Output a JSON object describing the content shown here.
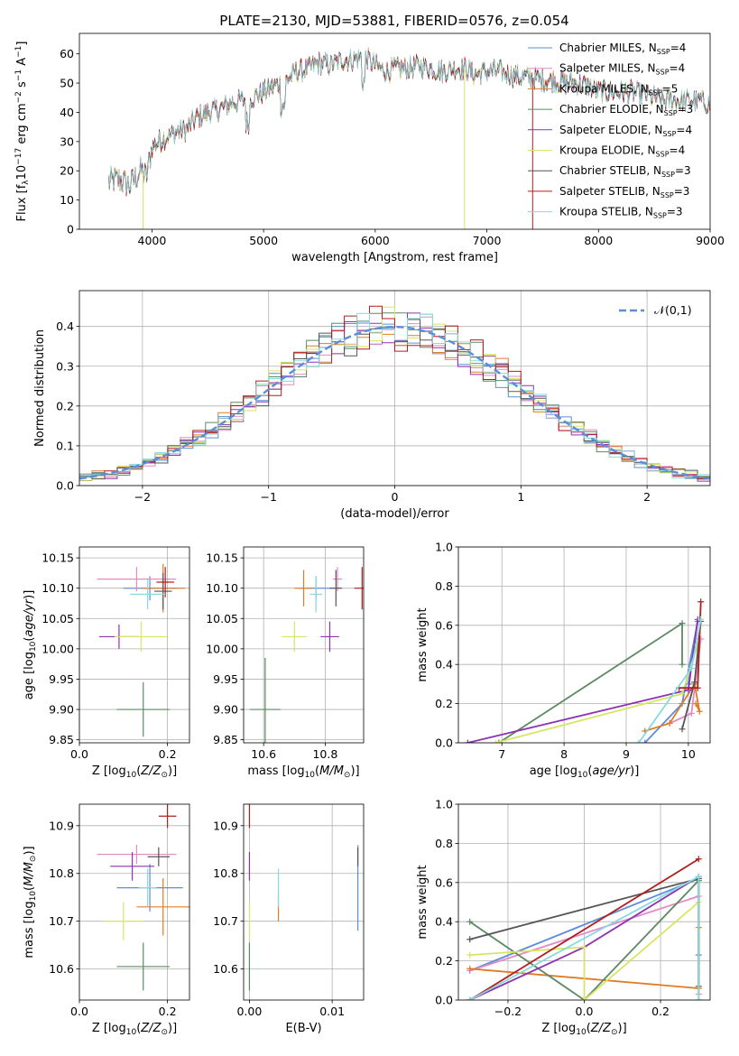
{
  "figure_title": "PLATE=2130, MJD=53881, FIBERID=0576, z=0.054",
  "colors": {
    "Chabrier MILES": "#5b8ddb",
    "Salpeter MILES": "#e58ac6",
    "Kroupa MILES": "#e07b26",
    "Chabrier ELODIE": "#5b8a62",
    "Salpeter ELODIE": "#8d32b0",
    "Kroupa ELODIE": "#d8e562",
    "Chabrier STELIB": "#555555",
    "Salpeter STELIB": "#b01e1e",
    "Kroupa STELIB": "#86dae0"
  },
  "chart_data": [
    {
      "id": "spectrum",
      "type": "line",
      "title": "PLATE=2130, MJD=53881, FIBERID=0576, z=0.054",
      "xlabel": "wavelength [Angstrom, rest frame]",
      "ylabel": "Flux [f_λ 10^-17 erg cm^-2 s^-1 A^-1]",
      "xlim": [
        3350,
        9000
      ],
      "ylim": [
        0,
        67
      ],
      "xticks": [
        4000,
        5000,
        6000,
        7000,
        8000,
        9000
      ],
      "yticks": [
        0,
        10,
        20,
        30,
        40,
        50,
        60
      ],
      "grid": false,
      "legend_position": "top-right",
      "legend": [
        "Chabrier MILES, N_SSP=4",
        "Salpeter MILES, N_SSP=4",
        "Kroupa MILES, N_SSP=5",
        "Chabrier ELODIE, N_SSP=3",
        "Salpeter ELODIE, N_SSP=4",
        "Kroupa ELODIE, N_SSP=4",
        "Chabrier STELIB, N_SSP=3",
        "Salpeter STELIB, N_SSP=3",
        "Kroupa STELIB, N_SSP=3"
      ],
      "continuum_x": [
        3600,
        3700,
        3800,
        3900,
        3950,
        4000,
        4100,
        4200,
        4300,
        4400,
        4500,
        4600,
        4700,
        4800,
        4900,
        5000,
        5100,
        5200,
        5300,
        5400,
        5500,
        5600,
        5700,
        5800,
        5900,
        6000,
        6100,
        6200,
        6300,
        6400,
        6500,
        6600,
        6700,
        6800,
        6900,
        7000,
        7100,
        7200,
        7300,
        7400,
        7500,
        7600,
        7700,
        7800,
        7900,
        8000,
        8100,
        8200,
        8300,
        8400,
        8500,
        8600,
        8700,
        8800,
        8900,
        9000
      ],
      "continuum_y": [
        16,
        17,
        15,
        20,
        18,
        28,
        31,
        33,
        34,
        38,
        40,
        41,
        43,
        44,
        45,
        47,
        49,
        51,
        54,
        55,
        57,
        56,
        58,
        58,
        59,
        56,
        54,
        55,
        55,
        56,
        55,
        54,
        55,
        55,
        53,
        54,
        54,
        53,
        52,
        52,
        51,
        51,
        50,
        50,
        49,
        47,
        47,
        47,
        47,
        46,
        45,
        44,
        44,
        44,
        44,
        43
      ],
      "dips": [
        {
          "series": "Kroupa ELODIE",
          "x": 3920,
          "y": 0
        },
        {
          "series": "Kroupa ELODIE",
          "x": 6800,
          "y": 0
        },
        {
          "series": "Salpeter STELIB",
          "x": 7410,
          "y": 0
        }
      ]
    },
    {
      "id": "residuals",
      "type": "histogram",
      "xlabel": "(data-model)/error",
      "ylabel": "Normed distribution",
      "xlim": [
        -2.5,
        2.5
      ],
      "ylim": [
        0,
        0.49
      ],
      "xticks": [
        -2,
        -1,
        0,
        1,
        2
      ],
      "yticks": [
        0,
        0.1,
        0.2,
        0.3,
        0.4
      ],
      "grid": true,
      "legend_position": "top-right",
      "legend": [
        "𝒩(0,1)"
      ],
      "bin_width": 0.1,
      "reference_curve": {
        "name": "𝒩(0,1)",
        "mean": 0,
        "sigma": 1
      }
    },
    {
      "id": "age_vs_Z",
      "type": "errorbar",
      "xlabel": "Z [log10(Z/Z⊙)]",
      "ylabel": "age [log10(age/yr)]",
      "xlim": [
        0,
        0.25
      ],
      "ylim": [
        9.845,
        10.168
      ],
      "xticks": [
        0.0,
        0.2
      ],
      "yticks": [
        9.85,
        9.9,
        9.95,
        10.0,
        10.05,
        10.1,
        10.15
      ],
      "grid": true,
      "points": [
        {
          "series": "Chabrier MILES",
          "x": 0.16,
          "xerr": 0.06,
          "y": 10.1,
          "yerr": 0.02
        },
        {
          "series": "Salpeter MILES",
          "x": 0.13,
          "xerr": 0.09,
          "y": 10.115,
          "yerr": 0.02
        },
        {
          "series": "Kroupa MILES",
          "x": 0.19,
          "xerr": 0.05,
          "y": 10.1,
          "yerr": 0.04
        },
        {
          "series": "Chabrier ELODIE",
          "x": 0.145,
          "xerr": 0.06,
          "y": 9.9,
          "yerr": 0.045
        },
        {
          "series": "Salpeter ELODIE",
          "x": 0.09,
          "xerr": 0.045,
          "y": 10.02,
          "yerr": 0.02
        },
        {
          "series": "Kroupa ELODIE",
          "x": 0.14,
          "xerr": 0.06,
          "y": 10.02,
          "yerr": 0.025
        },
        {
          "series": "Chabrier STELIB",
          "x": 0.19,
          "xerr": 0.02,
          "y": 10.095,
          "yerr": 0.03
        },
        {
          "series": "Salpeter STELIB",
          "x": 0.195,
          "xerr": 0.02,
          "y": 10.11,
          "yerr": 0.025
        },
        {
          "series": "Kroupa STELIB",
          "x": 0.155,
          "xerr": 0.04,
          "y": 10.09,
          "yerr": 0.025
        }
      ]
    },
    {
      "id": "age_vs_mass",
      "type": "errorbar",
      "xlabel": "mass [log10(M/M⊙)]",
      "ylabel": "",
      "xlim": [
        10.535,
        10.925
      ],
      "ylim": [
        9.845,
        10.168
      ],
      "xticks": [
        10.6,
        10.8
      ],
      "yticks": [
        9.85,
        9.9,
        9.95,
        10.0,
        10.05,
        10.1,
        10.15
      ],
      "grid": true,
      "points": [
        {
          "series": "Chabrier MILES",
          "x": 10.77,
          "xerr": 0.05,
          "y": 10.1,
          "yerr": 0.02
        },
        {
          "series": "Salpeter MILES",
          "x": 10.84,
          "xerr": 0.015,
          "y": 10.115,
          "yerr": 0.02
        },
        {
          "series": "Kroupa MILES",
          "x": 10.73,
          "xerr": 0.03,
          "y": 10.1,
          "yerr": 0.03
        },
        {
          "series": "Chabrier ELODIE",
          "x": 10.605,
          "xerr": 0.05,
          "y": 9.9,
          "yerr": 0.085
        },
        {
          "series": "Salpeter ELODIE",
          "x": 10.815,
          "xerr": 0.03,
          "y": 10.02,
          "yerr": 0.025
        },
        {
          "series": "Kroupa ELODIE",
          "x": 10.7,
          "xerr": 0.04,
          "y": 10.02,
          "yerr": 0.025
        },
        {
          "series": "Chabrier STELIB",
          "x": 10.835,
          "xerr": 0.02,
          "y": 10.1,
          "yerr": 0.03
        },
        {
          "series": "Salpeter STELIB",
          "x": 10.92,
          "xerr": 0.025,
          "y": 10.1,
          "yerr": 0.035
        },
        {
          "series": "Kroupa STELIB",
          "x": 10.77,
          "xerr": 0.02,
          "y": 10.09,
          "yerr": 0.03
        }
      ]
    },
    {
      "id": "massweight_vs_age",
      "type": "line",
      "xlabel": "age [log10(age/yr)]",
      "ylabel": "mass weight",
      "xlim": [
        6.3,
        10.35
      ],
      "ylim": [
        0,
        1
      ],
      "xticks": [
        7,
        8,
        9,
        10
      ],
      "yticks": [
        0.0,
        0.2,
        0.4,
        0.6,
        0.8,
        1.0
      ],
      "grid": true,
      "series": [
        {
          "name": "Chabrier MILES",
          "x": [
            9.3,
            9.9,
            10.15,
            10.0
          ],
          "y": [
            0.0,
            0.2,
            0.62,
            0.3
          ]
        },
        {
          "name": "Salpeter MILES",
          "x": [
            9.7,
            10.05,
            10.2,
            10.1
          ],
          "y": [
            0.1,
            0.15,
            0.53,
            0.28
          ]
        },
        {
          "name": "Kroupa MILES",
          "x": [
            9.3,
            9.7,
            10.1,
            10.18,
            10.12
          ],
          "y": [
            0.06,
            0.1,
            0.3,
            0.16,
            0.2
          ]
        },
        {
          "name": "Chabrier ELODIE",
          "x": [
            6.95,
            9.9,
            9.9
          ],
          "y": [
            0.0,
            0.61,
            0.4
          ]
        },
        {
          "name": "Salpeter ELODIE",
          "x": [
            6.45,
            10.0,
            10.15
          ],
          "y": [
            0.0,
            0.27,
            0.63
          ]
        },
        {
          "name": "Kroupa ELODIE",
          "x": [
            6.9,
            9.9,
            10.15
          ],
          "y": [
            0.0,
            0.25,
            0.5
          ]
        },
        {
          "name": "Chabrier STELIB",
          "x": [
            9.9,
            10.1,
            10.2
          ],
          "y": [
            0.07,
            0.31,
            0.62
          ]
        },
        {
          "name": "Salpeter STELIB",
          "x": [
            9.85,
            10.15,
            10.2
          ],
          "y": [
            0.28,
            0.28,
            0.72
          ]
        },
        {
          "name": "Kroupa STELIB",
          "x": [
            9.2,
            10.05,
            10.2
          ],
          "y": [
            0.0,
            0.38,
            0.63
          ]
        }
      ]
    },
    {
      "id": "mass_vs_Z",
      "type": "errorbar",
      "xlabel": "Z [log10(Z/Z⊙)]",
      "ylabel": "mass [log10(M/M⊙)]",
      "xlim": [
        0,
        0.25
      ],
      "ylim": [
        10.535,
        10.945
      ],
      "xticks": [
        0.0,
        0.2
      ],
      "yticks": [
        10.6,
        10.7,
        10.8,
        10.9
      ],
      "grid": true,
      "points": [
        {
          "series": "Chabrier MILES",
          "x": 0.16,
          "xerr": 0.075,
          "y": 10.77,
          "yerr": 0.05
        },
        {
          "series": "Salpeter MILES",
          "x": 0.13,
          "xerr": 0.09,
          "y": 10.84,
          "yerr": 0.02
        },
        {
          "series": "Kroupa MILES",
          "x": 0.19,
          "xerr": 0.06,
          "y": 10.73,
          "yerr": 0.06
        },
        {
          "series": "Chabrier ELODIE",
          "x": 0.145,
          "xerr": 0.06,
          "y": 10.605,
          "yerr": 0.05
        },
        {
          "series": "Salpeter ELODIE",
          "x": 0.12,
          "xerr": 0.05,
          "y": 10.815,
          "yerr": 0.03
        },
        {
          "series": "Kroupa ELODIE",
          "x": 0.1,
          "xerr": 0.045,
          "y": 10.7,
          "yerr": 0.04
        },
        {
          "series": "Chabrier STELIB",
          "x": 0.18,
          "xerr": 0.025,
          "y": 10.835,
          "yerr": 0.02
        },
        {
          "series": "Salpeter STELIB",
          "x": 0.2,
          "xerr": 0.02,
          "y": 10.92,
          "yerr": 0.025
        },
        {
          "series": "Kroupa STELIB",
          "x": 0.155,
          "xerr": 0.02,
          "y": 10.77,
          "yerr": 0.04
        }
      ]
    },
    {
      "id": "mass_vs_ebv",
      "type": "errorbar",
      "xlabel": "E(B-V)",
      "ylabel": "",
      "xlim": [
        -0.0007,
        0.0138
      ],
      "ylim": [
        10.535,
        10.945
      ],
      "xticks": [
        0.0,
        0.01
      ],
      "yticks": [
        10.6,
        10.7,
        10.8,
        10.9
      ],
      "grid": true,
      "points": [
        {
          "series": "Chabrier MILES",
          "x": 0.0131,
          "xerr": 0,
          "y": 10.77,
          "yerr": 0.09
        },
        {
          "series": "Salpeter MILES",
          "x": 0.0131,
          "xerr": 0,
          "y": 10.84,
          "yerr": 0.02
        },
        {
          "series": "Kroupa MILES",
          "x": 0.0035,
          "xerr": 0,
          "y": 10.73,
          "yerr": 0.03
        },
        {
          "series": "Chabrier ELODIE",
          "x": 0.0,
          "xerr": 0,
          "y": 10.605,
          "yerr": 0.05
        },
        {
          "series": "Salpeter ELODIE",
          "x": 0.0,
          "xerr": 0,
          "y": 10.815,
          "yerr": 0.03
        },
        {
          "series": "Kroupa ELODIE",
          "x": 0.0,
          "xerr": 0,
          "y": 10.7,
          "yerr": 0.04
        },
        {
          "series": "Chabrier STELIB",
          "x": 0.0131,
          "xerr": 0,
          "y": 10.835,
          "yerr": 0.02
        },
        {
          "series": "Salpeter STELIB",
          "x": 0.0,
          "xerr": 0,
          "y": 10.92,
          "yerr": 0.025
        },
        {
          "series": "Kroupa STELIB",
          "x": 0.0035,
          "xerr": 0,
          "y": 10.77,
          "yerr": 0.04
        }
      ]
    },
    {
      "id": "massweight_vs_Z",
      "type": "line",
      "xlabel": "Z [log10(Z/Z⊙)]",
      "ylabel": "mass weight",
      "xlim": [
        -0.33,
        0.33
      ],
      "ylim": [
        0,
        1
      ],
      "xticks": [
        -0.2,
        0.0,
        0.2
      ],
      "yticks": [
        0.0,
        0.2,
        0.4,
        0.6,
        0.8,
        1.0
      ],
      "grid": true,
      "series": [
        {
          "name": "Chabrier MILES",
          "x": [
            -0.3,
            0.3,
            0.3
          ],
          "y": [
            0.15,
            0.62,
            0.23
          ]
        },
        {
          "name": "Salpeter MILES",
          "x": [
            -0.3,
            0.3,
            0.3
          ],
          "y": [
            0.15,
            0.53,
            0.03
          ]
        },
        {
          "name": "Kroupa MILES",
          "x": [
            -0.3,
            0.3,
            0.3
          ],
          "y": [
            0.16,
            0.06,
            0.37
          ]
        },
        {
          "name": "Chabrier ELODIE",
          "x": [
            -0.3,
            0.0,
            0.3,
            0.3
          ],
          "y": [
            0.4,
            0.0,
            0.61,
            0.0
          ]
        },
        {
          "name": "Salpeter ELODIE",
          "x": [
            -0.3,
            0.0,
            0.3
          ],
          "y": [
            0.0,
            0.27,
            0.63
          ]
        },
        {
          "name": "Kroupa ELODIE",
          "x": [
            -0.3,
            0.0,
            0.0,
            0.3
          ],
          "y": [
            0.23,
            0.27,
            0.0,
            0.5
          ]
        },
        {
          "name": "Chabrier STELIB",
          "x": [
            -0.3,
            0.3,
            0.3
          ],
          "y": [
            0.31,
            0.62,
            0.07
          ]
        },
        {
          "name": "Salpeter STELIB",
          "x": [
            -0.3,
            0.3
          ],
          "y": [
            0.0,
            0.72
          ]
        },
        {
          "name": "Kroupa STELIB",
          "x": [
            -0.3,
            0.3,
            0.3
          ],
          "y": [
            0.0,
            0.63,
            0.0
          ]
        }
      ]
    }
  ]
}
